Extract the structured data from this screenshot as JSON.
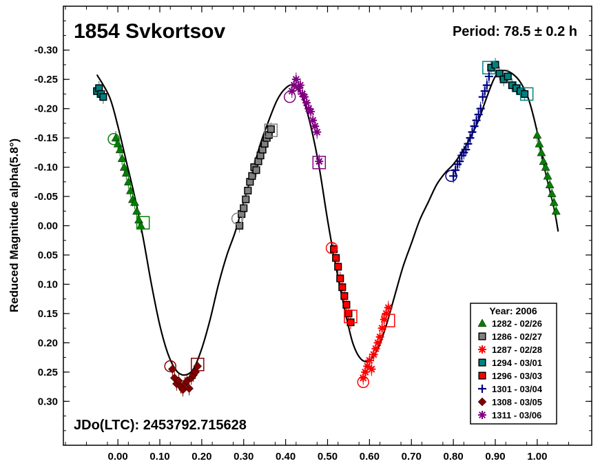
{
  "chart_data": {
    "type": "scatter",
    "title": "1854 Svkortsov",
    "period_label": "Period: 78.5 ± 0.2 h",
    "epoch_label": "JDo(LTC): 2453792.715628",
    "ylabel": "Reduced Magnitude alpha(5.8°)",
    "xlabel": "",
    "xlim": [
      -0.13,
      1.13
    ],
    "ylim": [
      0.375,
      -0.375
    ],
    "y_inverted": true,
    "grid": false,
    "x_ticks": [
      "0.00",
      "0.10",
      "0.20",
      "0.30",
      "0.40",
      "0.50",
      "0.60",
      "0.70",
      "0.80",
      "0.90",
      "1.00"
    ],
    "x_tick_values": [
      0,
      0.1,
      0.2,
      0.3,
      0.4,
      0.5,
      0.6,
      0.7,
      0.8,
      0.9,
      1.0
    ],
    "y_ticks": [
      "-0.30",
      "-0.25",
      "-0.20",
      "-0.15",
      "-0.10",
      "-0.05",
      "0.00",
      "0.05",
      "0.10",
      "0.15",
      "0.20",
      "0.25",
      "0.30"
    ],
    "y_tick_values": [
      -0.3,
      -0.25,
      -0.2,
      -0.15,
      -0.1,
      -0.05,
      0,
      0.05,
      0.1,
      0.15,
      0.2,
      0.25,
      0.3
    ],
    "legend": {
      "title": "Year: 2006",
      "placement": "bottom-right"
    },
    "fit_curve": {
      "name": "Fourier fit",
      "color": "#000000",
      "x": [
        -0.05,
        -0.02,
        0.0,
        0.02,
        0.04,
        0.06,
        0.08,
        0.1,
        0.12,
        0.14,
        0.16,
        0.18,
        0.2,
        0.22,
        0.24,
        0.26,
        0.28,
        0.3,
        0.32,
        0.34,
        0.36,
        0.38,
        0.4,
        0.42,
        0.44,
        0.46,
        0.48,
        0.5,
        0.52,
        0.54,
        0.56,
        0.58,
        0.6,
        0.62,
        0.64,
        0.66,
        0.68,
        0.7,
        0.72,
        0.74,
        0.76,
        0.78,
        0.8,
        0.82,
        0.84,
        0.86,
        0.88,
        0.9,
        0.92,
        0.94,
        0.96,
        0.98,
        1.0,
        1.02,
        1.04,
        1.05
      ],
      "y": [
        -0.258,
        -0.22,
        -0.17,
        -0.11,
        -0.05,
        0.02,
        0.1,
        0.17,
        0.22,
        0.248,
        0.255,
        0.245,
        0.21,
        0.16,
        0.1,
        0.05,
        0.01,
        -0.04,
        -0.09,
        -0.14,
        -0.18,
        -0.215,
        -0.235,
        -0.24,
        -0.22,
        -0.17,
        -0.1,
        -0.01,
        0.07,
        0.14,
        0.2,
        0.228,
        0.23,
        0.21,
        0.17,
        0.12,
        0.07,
        0.03,
        -0.01,
        -0.04,
        -0.07,
        -0.09,
        -0.105,
        -0.125,
        -0.15,
        -0.18,
        -0.22,
        -0.255,
        -0.265,
        -0.26,
        -0.245,
        -0.215,
        -0.16,
        -0.09,
        -0.03,
        0.01
      ]
    },
    "series": [
      {
        "name": "1282 - 02/26",
        "marker": "triangle",
        "color": "#008000",
        "x": [
          -0.005,
          0.0,
          0.005,
          0.01,
          0.015,
          0.02,
          0.025,
          0.03,
          0.035,
          0.04,
          0.045,
          0.05,
          0.055,
          1.0,
          1.005,
          1.01,
          1.015,
          1.02,
          1.025,
          1.03,
          1.035,
          1.04,
          1.045
        ],
        "y": [
          -0.15,
          -0.14,
          -0.13,
          -0.115,
          -0.1,
          -0.09,
          -0.075,
          -0.06,
          -0.045,
          -0.04,
          -0.025,
          -0.01,
          0.0,
          -0.155,
          -0.14,
          -0.125,
          -0.11,
          -0.1,
          -0.085,
          -0.07,
          -0.055,
          -0.04,
          -0.025
        ],
        "open_marker": {
          "x": 0.06,
          "y": -0.005,
          "shape": "square"
        },
        "open_marker2": {
          "x": -0.01,
          "y": -0.148,
          "shape": "circle"
        }
      },
      {
        "name": "1286 - 02/27",
        "marker": "square",
        "color": "#808080",
        "x": [
          0.29,
          0.295,
          0.3,
          0.305,
          0.31,
          0.315,
          0.32,
          0.325,
          0.33,
          0.335,
          0.34,
          0.345,
          0.35,
          0.355,
          0.36,
          0.365
        ],
        "y": [
          0.0,
          -0.02,
          -0.03,
          -0.045,
          -0.06,
          -0.075,
          -0.085,
          -0.1,
          -0.095,
          -0.11,
          -0.12,
          -0.13,
          -0.14,
          -0.15,
          -0.155,
          -0.165
        ],
        "open_marker": {
          "x": 0.365,
          "y": -0.163,
          "shape": "square"
        },
        "open_marker2": {
          "x": 0.285,
          "y": -0.012,
          "shape": "circle"
        }
      },
      {
        "name": "1287 - 02/28",
        "marker": "asterisk",
        "color": "#ff0000",
        "x": [
          0.585,
          0.59,
          0.595,
          0.6,
          0.605,
          0.61,
          0.615,
          0.62,
          0.625,
          0.63,
          0.635,
          0.64,
          0.645
        ],
        "y": [
          0.26,
          0.25,
          0.24,
          0.23,
          0.245,
          0.22,
          0.21,
          0.2,
          0.19,
          0.175,
          0.16,
          0.15,
          0.14
        ],
        "open_marker": {
          "x": 0.645,
          "y": 0.162,
          "shape": "square"
        },
        "open_marker2": {
          "x": 0.585,
          "y": 0.267,
          "shape": "circle"
        }
      },
      {
        "name": "1294 - 03/01",
        "marker": "square",
        "color": "#008080",
        "x": [
          -0.05,
          -0.045,
          -0.04,
          -0.035,
          0.89,
          0.9,
          0.91,
          0.92,
          0.93,
          0.94,
          0.95,
          0.96,
          0.97
        ],
        "y": [
          -0.23,
          -0.235,
          -0.225,
          -0.22,
          -0.27,
          -0.275,
          -0.26,
          -0.25,
          -0.255,
          -0.24,
          -0.235,
          -0.23,
          -0.225
        ],
        "open_marker": {
          "x": 0.975,
          "y": -0.225,
          "shape": "square"
        },
        "open_marker2": {
          "x": 0.885,
          "y": -0.27,
          "shape": "square"
        }
      },
      {
        "name": "1296 - 03/03",
        "marker": "square",
        "color": "#ff0000",
        "x": [
          0.515,
          0.52,
          0.525,
          0.53,
          0.535,
          0.54,
          0.545,
          0.55,
          0.555
        ],
        "y": [
          0.04,
          0.055,
          0.07,
          0.09,
          0.105,
          0.12,
          0.135,
          0.15,
          0.165
        ],
        "open_marker": {
          "x": 0.555,
          "y": 0.155,
          "shape": "square"
        },
        "open_marker2": {
          "x": 0.51,
          "y": 0.038,
          "shape": "circle"
        }
      },
      {
        "name": "1301 - 03/04",
        "marker": "plus",
        "color": "#000080",
        "x": [
          0.8,
          0.805,
          0.81,
          0.815,
          0.82,
          0.825,
          0.83,
          0.835,
          0.84,
          0.845,
          0.85,
          0.855,
          0.86,
          0.865,
          0.87,
          0.875,
          0.88,
          0.885
        ],
        "y": [
          -0.085,
          -0.095,
          -0.105,
          -0.11,
          -0.12,
          -0.125,
          -0.13,
          -0.14,
          -0.15,
          -0.16,
          -0.17,
          -0.18,
          -0.19,
          -0.2,
          -0.22,
          -0.23,
          -0.24,
          -0.255
        ],
        "open_marker2": {
          "x": 0.795,
          "y": -0.085,
          "shape": "circle"
        }
      },
      {
        "name": "1308 - 03/05",
        "marker": "diamond",
        "color": "#800000",
        "x": [
          0.13,
          0.135,
          0.14,
          0.145,
          0.15,
          0.155,
          0.16,
          0.165,
          0.17,
          0.175,
          0.18,
          0.185,
          0.19
        ],
        "y": [
          0.245,
          0.26,
          0.27,
          0.265,
          0.275,
          0.28,
          0.27,
          0.265,
          0.278,
          0.26,
          0.255,
          0.25,
          0.24
        ],
        "open_marker": {
          "x": 0.19,
          "y": 0.237,
          "shape": "square"
        },
        "open_marker2": {
          "x": 0.125,
          "y": 0.24,
          "shape": "circle"
        }
      },
      {
        "name": "1311 - 03/06",
        "marker": "asterisk",
        "color": "#800080",
        "x": [
          0.415,
          0.42,
          0.425,
          0.43,
          0.435,
          0.44,
          0.445,
          0.45,
          0.455,
          0.46,
          0.465,
          0.47,
          0.475,
          0.48
        ],
        "y": [
          -0.23,
          -0.24,
          -0.25,
          -0.235,
          -0.24,
          -0.225,
          -0.22,
          -0.21,
          -0.2,
          -0.195,
          -0.18,
          -0.17,
          -0.16,
          -0.11
        ],
        "open_marker": {
          "x": 0.48,
          "y": -0.108,
          "shape": "square"
        },
        "open_marker2": {
          "x": 0.41,
          "y": -0.22,
          "shape": "circle"
        }
      }
    ]
  }
}
